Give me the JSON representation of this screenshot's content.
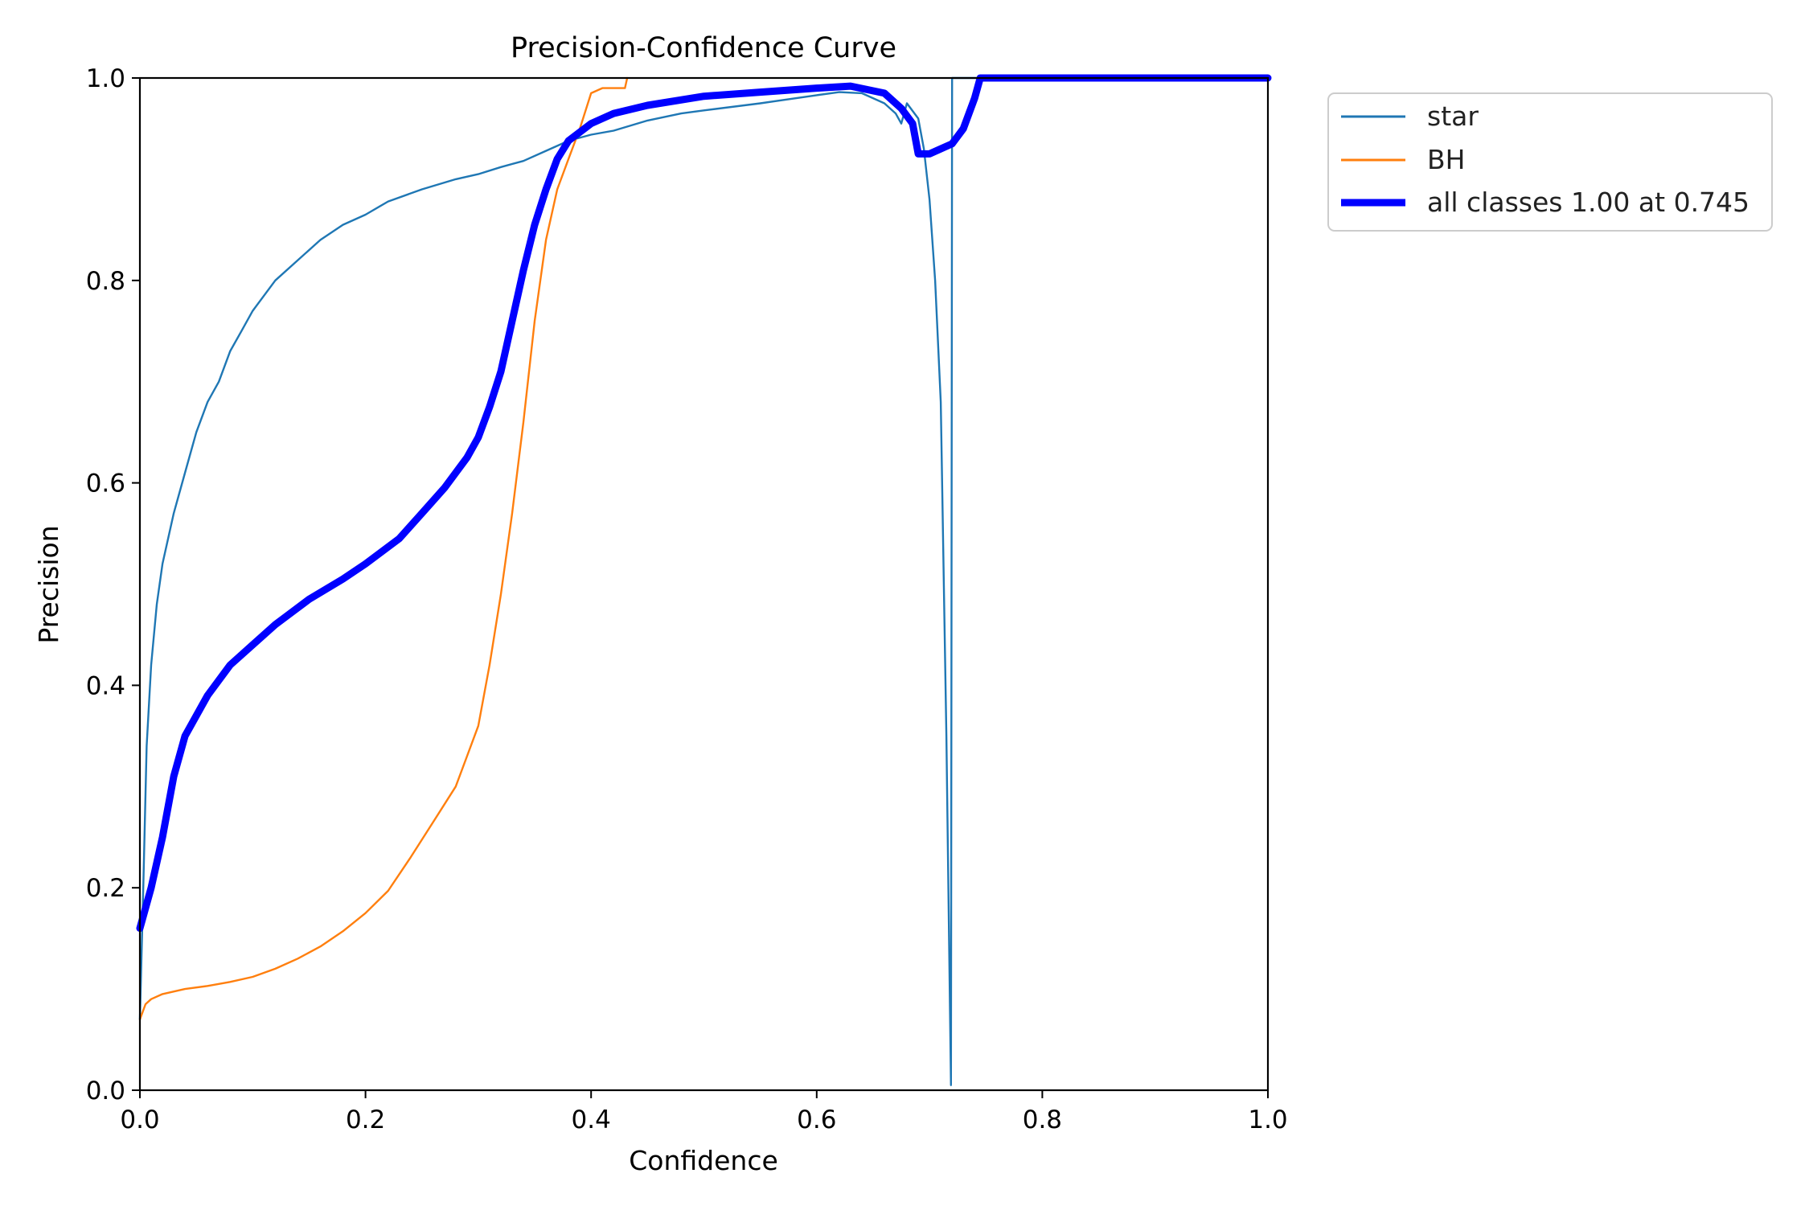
{
  "chart_data": {
    "type": "line",
    "title": "Precision-Confidence Curve",
    "xlabel": "Confidence",
    "ylabel": "Precision",
    "xlim": [
      0,
      1
    ],
    "ylim": [
      0,
      1
    ],
    "xticks": [
      "0.0",
      "0.2",
      "0.4",
      "0.6",
      "0.8",
      "1.0"
    ],
    "yticks": [
      "0.0",
      "0.2",
      "0.4",
      "0.6",
      "0.8",
      "1.0"
    ],
    "grid": false,
    "legend_position": "outside-top-right",
    "series": [
      {
        "name": "star",
        "color": "#1f77b4",
        "points": [
          [
            0.0,
            0.07
          ],
          [
            0.003,
            0.2
          ],
          [
            0.006,
            0.34
          ],
          [
            0.01,
            0.42
          ],
          [
            0.015,
            0.48
          ],
          [
            0.02,
            0.52
          ],
          [
            0.03,
            0.57
          ],
          [
            0.04,
            0.61
          ],
          [
            0.05,
            0.65
          ],
          [
            0.06,
            0.68
          ],
          [
            0.07,
            0.7
          ],
          [
            0.08,
            0.73
          ],
          [
            0.09,
            0.75
          ],
          [
            0.1,
            0.77
          ],
          [
            0.12,
            0.8
          ],
          [
            0.14,
            0.82
          ],
          [
            0.16,
            0.84
          ],
          [
            0.18,
            0.855
          ],
          [
            0.2,
            0.865
          ],
          [
            0.22,
            0.878
          ],
          [
            0.25,
            0.89
          ],
          [
            0.28,
            0.9
          ],
          [
            0.3,
            0.905
          ],
          [
            0.32,
            0.912
          ],
          [
            0.34,
            0.918
          ],
          [
            0.36,
            0.928
          ],
          [
            0.38,
            0.938
          ],
          [
            0.4,
            0.944
          ],
          [
            0.42,
            0.948
          ],
          [
            0.45,
            0.958
          ],
          [
            0.48,
            0.965
          ],
          [
            0.5,
            0.968
          ],
          [
            0.55,
            0.975
          ],
          [
            0.6,
            0.983
          ],
          [
            0.62,
            0.986
          ],
          [
            0.64,
            0.985
          ],
          [
            0.66,
            0.975
          ],
          [
            0.67,
            0.965
          ],
          [
            0.675,
            0.955
          ],
          [
            0.68,
            0.975
          ],
          [
            0.69,
            0.96
          ],
          [
            0.695,
            0.93
          ],
          [
            0.7,
            0.88
          ],
          [
            0.705,
            0.8
          ],
          [
            0.71,
            0.68
          ],
          [
            0.715,
            0.35
          ],
          [
            0.719,
            0.005
          ],
          [
            0.72,
            1.0
          ],
          [
            0.75,
            1.0
          ],
          [
            0.8,
            1.0
          ],
          [
            0.9,
            1.0
          ],
          [
            1.0,
            1.0
          ]
        ]
      },
      {
        "name": "BH",
        "color": "#ff7f0e",
        "points": [
          [
            0.0,
            0.07
          ],
          [
            0.005,
            0.085
          ],
          [
            0.01,
            0.09
          ],
          [
            0.02,
            0.095
          ],
          [
            0.04,
            0.1
          ],
          [
            0.06,
            0.103
          ],
          [
            0.08,
            0.107
          ],
          [
            0.1,
            0.112
          ],
          [
            0.12,
            0.12
          ],
          [
            0.14,
            0.13
          ],
          [
            0.16,
            0.142
          ],
          [
            0.18,
            0.157
          ],
          [
            0.2,
            0.175
          ],
          [
            0.22,
            0.197
          ],
          [
            0.24,
            0.23
          ],
          [
            0.26,
            0.265
          ],
          [
            0.28,
            0.3
          ],
          [
            0.29,
            0.33
          ],
          [
            0.3,
            0.36
          ],
          [
            0.31,
            0.42
          ],
          [
            0.32,
            0.49
          ],
          [
            0.33,
            0.57
          ],
          [
            0.34,
            0.66
          ],
          [
            0.35,
            0.76
          ],
          [
            0.36,
            0.84
          ],
          [
            0.37,
            0.89
          ],
          [
            0.38,
            0.92
          ],
          [
            0.39,
            0.95
          ],
          [
            0.4,
            0.985
          ],
          [
            0.41,
            0.99
          ],
          [
            0.42,
            0.99
          ],
          [
            0.43,
            0.99
          ],
          [
            0.432,
            1.0
          ]
        ]
      },
      {
        "name": "all classes 1.00 at 0.745",
        "color": "#0000ff",
        "points": [
          [
            0.0,
            0.16
          ],
          [
            0.01,
            0.2
          ],
          [
            0.02,
            0.25
          ],
          [
            0.03,
            0.31
          ],
          [
            0.04,
            0.35
          ],
          [
            0.06,
            0.39
          ],
          [
            0.08,
            0.42
          ],
          [
            0.1,
            0.44
          ],
          [
            0.12,
            0.46
          ],
          [
            0.15,
            0.485
          ],
          [
            0.18,
            0.505
          ],
          [
            0.2,
            0.52
          ],
          [
            0.23,
            0.545
          ],
          [
            0.25,
            0.57
          ],
          [
            0.27,
            0.595
          ],
          [
            0.29,
            0.625
          ],
          [
            0.3,
            0.645
          ],
          [
            0.31,
            0.675
          ],
          [
            0.32,
            0.71
          ],
          [
            0.33,
            0.76
          ],
          [
            0.34,
            0.81
          ],
          [
            0.35,
            0.855
          ],
          [
            0.36,
            0.89
          ],
          [
            0.37,
            0.92
          ],
          [
            0.38,
            0.938
          ],
          [
            0.4,
            0.955
          ],
          [
            0.42,
            0.965
          ],
          [
            0.45,
            0.973
          ],
          [
            0.5,
            0.982
          ],
          [
            0.55,
            0.986
          ],
          [
            0.6,
            0.99
          ],
          [
            0.63,
            0.992
          ],
          [
            0.66,
            0.985
          ],
          [
            0.675,
            0.97
          ],
          [
            0.685,
            0.955
          ],
          [
            0.69,
            0.925
          ],
          [
            0.7,
            0.925
          ],
          [
            0.71,
            0.93
          ],
          [
            0.72,
            0.935
          ],
          [
            0.73,
            0.95
          ],
          [
            0.74,
            0.98
          ],
          [
            0.745,
            1.0
          ],
          [
            0.8,
            1.0
          ],
          [
            0.9,
            1.0
          ],
          [
            1.0,
            1.0
          ]
        ]
      }
    ]
  }
}
